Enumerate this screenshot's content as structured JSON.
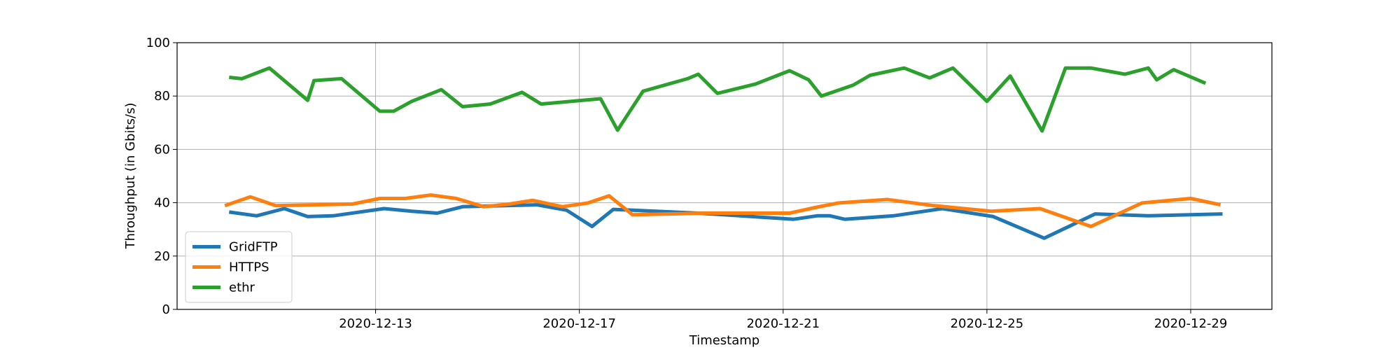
{
  "chart_data": {
    "type": "line",
    "xlabel": "Timestamp",
    "ylabel": "Throughput (in Gbits/s)",
    "xlim": [
      "2020-12-09 02:30",
      "2020-12-30 14:15"
    ],
    "xticks": [
      "2020-12-13",
      "2020-12-17",
      "2020-12-21",
      "2020-12-25",
      "2020-12-29"
    ],
    "ylim": [
      0,
      100
    ],
    "yticks": [
      0,
      20,
      40,
      60,
      80,
      100
    ],
    "grid": true,
    "legend": "lower left",
    "series": [
      {
        "name": "GridFTP",
        "color": "#1f77b4",
        "x": [
          "2020-12-10 03:00",
          "2020-12-10 16:00",
          "2020-12-11 05:00",
          "2020-12-11 16:00",
          "2020-12-12 04:00",
          "2020-12-13 04:00",
          "2020-12-13 17:00",
          "2020-12-14 05:00",
          "2020-12-14 17:00",
          "2020-12-16 04:00",
          "2020-12-16 18:00",
          "2020-12-17 06:00",
          "2020-12-17 16:00",
          "2020-12-18 01:00",
          "2020-12-19 08:00",
          "2020-12-21 05:00",
          "2020-12-21 16:00",
          "2020-12-21 22:00",
          "2020-12-22 05:00",
          "2020-12-23 04:00",
          "2020-12-24 03:00",
          "2020-12-25 03:00",
          "2020-12-26 03:00",
          "2020-12-27 03:00",
          "2020-12-28 04:00",
          "2020-12-29 15:00"
        ],
        "values": [
          36.5,
          35.1,
          37.8,
          34.8,
          35.1,
          37.8,
          36.8,
          36.1,
          38.5,
          39.2,
          37.2,
          31.1,
          37.5,
          37.2,
          36.1,
          33.8,
          35.1,
          35.1,
          33.8,
          35.1,
          37.8,
          34.8,
          26.7,
          35.8,
          35.1,
          35.8
        ]
      },
      {
        "name": "HTTPS",
        "color": "#ff7f0e",
        "x": [
          "2020-12-10 01:00",
          "2020-12-10 13:00",
          "2020-12-11 01:00",
          "2020-12-12 13:00",
          "2020-12-13 02:00",
          "2020-12-13 14:00",
          "2020-12-14 02:00",
          "2020-12-14 14:00",
          "2020-12-15 03:00",
          "2020-12-15 15:00",
          "2020-12-16 02:00",
          "2020-12-16 16:00",
          "2020-12-17 04:00",
          "2020-12-17 14:00",
          "2020-12-18 01:00",
          "2020-12-19 11:00",
          "2020-12-21 03:00",
          "2020-12-21 15:00",
          "2020-12-22 02:00",
          "2020-12-23 01:00",
          "2020-12-23 23:00",
          "2020-12-25 02:00",
          "2020-12-26 01:00",
          "2020-12-27 01:00",
          "2020-12-28 01:00",
          "2020-12-29 00:00",
          "2020-12-29 14:00"
        ],
        "values": [
          38.9,
          42.2,
          38.9,
          39.5,
          41.6,
          41.6,
          42.9,
          41.6,
          38.5,
          39.5,
          40.9,
          38.5,
          39.9,
          42.6,
          35.5,
          36.1,
          36.1,
          38.2,
          39.9,
          41.2,
          38.9,
          36.8,
          37.8,
          31.1,
          39.9,
          41.6,
          39.2
        ]
      },
      {
        "name": "ethr",
        "color": "#2ca02c",
        "x": [
          "2020-12-10 03:00",
          "2020-12-10 09:00",
          "2020-12-10 22:00",
          "2020-12-11 16:00",
          "2020-12-11 19:00",
          "2020-12-12 08:00",
          "2020-12-13 02:00",
          "2020-12-13 08:30",
          "2020-12-13 17:00",
          "2020-12-14 07:00",
          "2020-12-14 17:00",
          "2020-12-15 06:00",
          "2020-12-15 21:00",
          "2020-12-16 06:00",
          "2020-12-17 10:00",
          "2020-12-17 18:00",
          "2020-12-18 06:00",
          "2020-12-19 03:00",
          "2020-12-19 08:00",
          "2020-12-19 17:00",
          "2020-12-20 11:00",
          "2020-12-21 03:00",
          "2020-12-21 12:00",
          "2020-12-21 18:00",
          "2020-12-22 09:00",
          "2020-12-22 17:00",
          "2020-12-23 09:00",
          "2020-12-23 21:00",
          "2020-12-24 08:00",
          "2020-12-25 00:00",
          "2020-12-25 11:00",
          "2020-12-26 02:00",
          "2020-12-26 13:00",
          "2020-12-27 01:00",
          "2020-12-27 17:00",
          "2020-12-28 04:00",
          "2020-12-28 08:00",
          "2020-12-28 16:00",
          "2020-12-29 07:00"
        ],
        "values": [
          87,
          86.5,
          90.5,
          78.4,
          85.8,
          86.5,
          74.3,
          74.3,
          78,
          82.4,
          76,
          77,
          81.4,
          77,
          79,
          67.2,
          81.8,
          86.5,
          88.2,
          81,
          84.5,
          89.5,
          86.1,
          80,
          84.1,
          87.8,
          90.5,
          86.8,
          90.5,
          78,
          87.5,
          66.9,
          90.5,
          90.5,
          88.2,
          90.5,
          86.1,
          89.9,
          84.8
        ]
      }
    ]
  }
}
